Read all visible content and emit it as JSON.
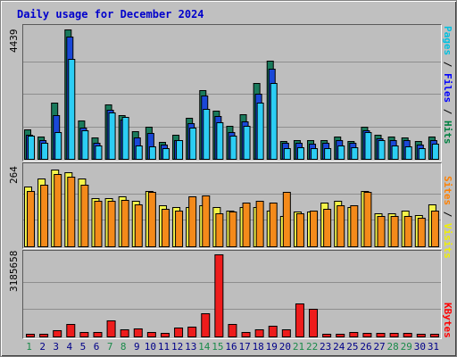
{
  "title": "Daily usage for December 2024",
  "colors": {
    "hits": "#1a7a5c",
    "files": "#1a48d8",
    "pages": "#2ccdf4",
    "visits": "#f4f44a",
    "sites": "#f48a1a",
    "kbytes": "#ee1c1c",
    "weekend_day": "#1a8a4a",
    "weekday": "#000088",
    "legend_pages": "#00c0e0",
    "legend_files": "#0000ff",
    "legend_hits": "#008040",
    "legend_sites": "#ff8000",
    "legend_visits": "#f0f000",
    "legend_kbytes": "#ff0000"
  },
  "labels": {
    "max_hits": "4439",
    "max_visits": "264",
    "max_kbytes": "3185658",
    "legend_pages": "Pages",
    "legend_files": "Files",
    "legend_hits": "Hits",
    "legend_sites": "Sites",
    "legend_visits": "Visits",
    "legend_kbytes": "KBytes",
    "legend_sep": " / "
  },
  "chart_data": {
    "type": "bar",
    "title": "Daily usage for December 2024",
    "categories": [
      "1",
      "2",
      "3",
      "4",
      "5",
      "6",
      "7",
      "8",
      "9",
      "10",
      "11",
      "12",
      "13",
      "14",
      "15",
      "16",
      "17",
      "18",
      "19",
      "20",
      "21",
      "22",
      "23",
      "24",
      "25",
      "26",
      "27",
      "28",
      "29",
      "30",
      "31"
    ],
    "weekend_days": [
      1,
      7,
      8,
      14,
      15,
      21,
      22,
      28,
      29
    ],
    "panels": [
      {
        "name": "hits-files-pages",
        "max_label": 4439,
        "series": [
          {
            "name": "Hits",
            "values": [
              1000,
              750,
              1930,
              4400,
              1300,
              720,
              1850,
              1480,
              930,
              1100,
              570,
              820,
              1400,
              2350,
              1630,
              1120,
              1520,
              2580,
              3350,
              620,
              640,
              640,
              640,
              770,
              620,
              1080,
              820,
              750,
              740,
              600,
              750
            ]
          },
          {
            "name": "Files",
            "values": [
              820,
              640,
              1500,
              4180,
              1050,
              550,
              1680,
              1330,
              720,
              870,
              480,
              650,
              1230,
              2150,
              1450,
              920,
              1280,
              2220,
              3060,
              540,
              540,
              520,
              540,
              650,
              540,
              980,
              700,
              640,
              650,
              500,
              640
            ]
          },
          {
            "name": "Pages",
            "values": [
              780,
              540,
              920,
              3400,
              960,
              460,
              1570,
              1420,
              460,
              420,
              360,
              630,
              1060,
              1700,
              1240,
              790,
              1130,
              1930,
              2580,
              380,
              390,
              380,
              380,
              470,
              390,
              900,
              650,
              450,
              420,
              370,
              510
            ]
          }
        ]
      },
      {
        "name": "visits-sites",
        "max_label": 264,
        "series": [
          {
            "name": "Visits",
            "values": [
              200,
              225,
              255,
              245,
              225,
              160,
              160,
              165,
              150,
              185,
              135,
              130,
              130,
              135,
              130,
              120,
              130,
              130,
              120,
              100,
              115,
              115,
              145,
              150,
              130,
              185,
              110,
              110,
              120,
              105,
              140
            ]
          },
          {
            "name": "Sites",
            "values": [
              185,
              205,
              240,
              230,
              205,
              150,
              150,
              155,
              140,
              180,
              125,
              120,
              165,
              170,
              110,
              115,
              145,
              150,
              145,
              180,
              110,
              120,
              125,
              135,
              135,
              180,
              100,
              100,
              100,
              95,
              120
            ]
          }
        ]
      },
      {
        "name": "kbytes",
        "max_label": 3185658,
        "series": [
          {
            "name": "KBytes",
            "values": [
              90000,
              110000,
              240000,
              470000,
              190000,
              160000,
              640000,
              280000,
              300000,
              190000,
              150000,
              350000,
              370000,
              900000,
              3185658,
              480000,
              180000,
              260000,
              420000,
              290000,
              1280000,
              1080000,
              110000,
              110000,
              170000,
              130000,
              150000,
              130000,
              130000,
              100000,
              100000
            ]
          }
        ]
      }
    ]
  }
}
